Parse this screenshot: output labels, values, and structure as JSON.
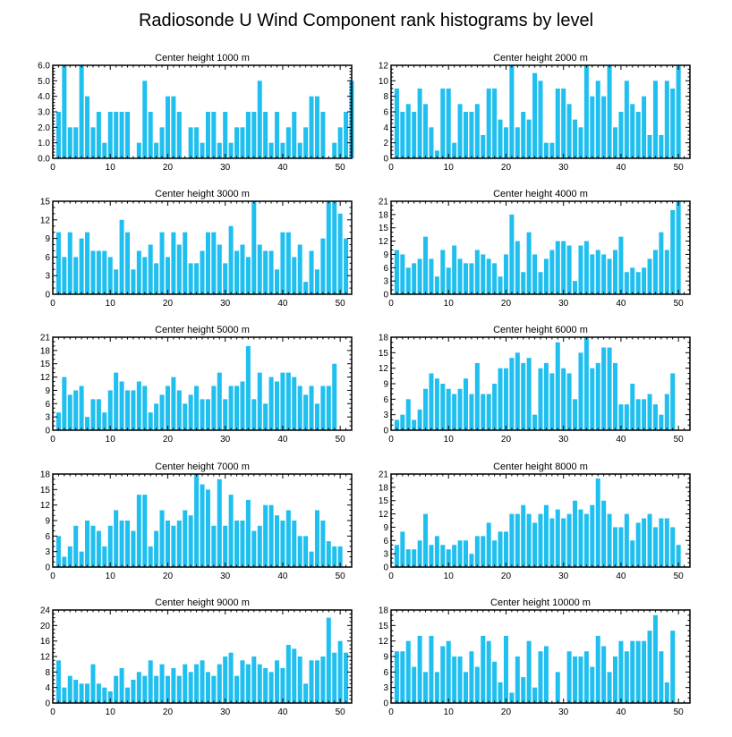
{
  "figure_title": "Radiosonde U Wind Component rank histograms by level",
  "colors": {
    "bar": "#1fbfef",
    "axis": "#000000",
    "text": "#000000"
  },
  "chart_data": [
    {
      "type": "bar",
      "title": "Center height 1000 m",
      "xlim": [
        0,
        52
      ],
      "ylim": [
        0,
        6
      ],
      "xticks": [
        0,
        10,
        20,
        30,
        40,
        50
      ],
      "xtick_labels": [
        "0",
        "10",
        "20",
        "30",
        "40",
        "50"
      ],
      "yticks": [
        0,
        1,
        2,
        3,
        4,
        5,
        6
      ],
      "ytick_labels": [
        "0.0",
        "1.0",
        "2.0",
        "3.0",
        "4.0",
        "5.0",
        "6.0"
      ],
      "x_start": 1,
      "values": [
        3,
        6,
        2,
        2,
        6,
        4,
        2,
        3,
        1,
        3,
        3,
        3,
        3,
        0,
        1,
        5,
        3,
        1,
        2,
        4,
        4,
        3,
        0,
        2,
        2,
        1,
        3,
        3,
        1,
        3,
        1,
        2,
        2,
        3,
        3,
        5,
        3,
        1,
        3,
        1,
        2,
        3,
        1,
        2,
        4,
        4,
        3,
        0,
        1,
        2,
        3,
        5
      ]
    },
    {
      "type": "bar",
      "title": "Center height 2000 m",
      "xlim": [
        0,
        52
      ],
      "ylim": [
        0,
        12
      ],
      "xticks": [
        0,
        10,
        20,
        30,
        40,
        50
      ],
      "xtick_labels": [
        "0",
        "10",
        "20",
        "30",
        "40",
        "50"
      ],
      "yticks": [
        0,
        2,
        4,
        6,
        8,
        10,
        12
      ],
      "ytick_labels": [
        "0",
        "2",
        "4",
        "6",
        "8",
        "10",
        "12"
      ],
      "x_start": 1,
      "values": [
        9,
        6,
        7,
        6,
        9,
        7,
        4,
        1,
        9,
        9,
        2,
        7,
        6,
        6,
        7,
        3,
        9,
        9,
        5,
        4,
        12,
        4,
        6,
        5,
        11,
        10,
        2,
        2,
        9,
        9,
        7,
        5,
        4,
        12,
        8,
        10,
        8,
        12,
        4,
        6,
        10,
        7,
        6,
        8,
        3,
        10,
        3,
        10,
        9,
        12
      ]
    },
    {
      "type": "bar",
      "title": "Center height 3000 m",
      "xlim": [
        0,
        52
      ],
      "ylim": [
        0,
        15
      ],
      "xticks": [
        0,
        10,
        20,
        30,
        40,
        50
      ],
      "xtick_labels": [
        "0",
        "10",
        "20",
        "30",
        "40",
        "50"
      ],
      "yticks": [
        0,
        3,
        6,
        9,
        12,
        15
      ],
      "ytick_labels": [
        "0",
        "3",
        "6",
        "9",
        "12",
        "15"
      ],
      "x_start": 1,
      "values": [
        10,
        6,
        10,
        6,
        9,
        10,
        7,
        7,
        7,
        6,
        4,
        12,
        10,
        4,
        7,
        6,
        8,
        5,
        10,
        6,
        10,
        8,
        10,
        5,
        5,
        7,
        10,
        10,
        8,
        5,
        11,
        7,
        8,
        6,
        15,
        8,
        7,
        7,
        4,
        10,
        10,
        6,
        8,
        2,
        7,
        4,
        9,
        15,
        15,
        13,
        9
      ]
    },
    {
      "type": "bar",
      "title": "Center height 4000 m",
      "xlim": [
        0,
        52
      ],
      "ylim": [
        0,
        21
      ],
      "xticks": [
        0,
        10,
        20,
        30,
        40,
        50
      ],
      "xtick_labels": [
        "0",
        "10",
        "20",
        "30",
        "40",
        "50"
      ],
      "yticks": [
        0,
        3,
        6,
        9,
        12,
        15,
        18,
        21
      ],
      "ytick_labels": [
        "0",
        "3",
        "6",
        "9",
        "12",
        "15",
        "18",
        "21"
      ],
      "x_start": 1,
      "values": [
        10,
        9,
        6,
        7,
        8,
        13,
        8,
        4,
        10,
        6,
        11,
        8,
        7,
        7,
        10,
        9,
        8,
        7,
        4,
        9,
        18,
        12,
        5,
        14,
        9,
        5,
        8,
        10,
        12,
        12,
        11,
        3,
        11,
        12,
        9,
        10,
        9,
        8,
        10,
        13,
        5,
        6,
        5,
        6,
        8,
        10,
        14,
        10,
        19,
        21
      ]
    },
    {
      "type": "bar",
      "title": "Center height 5000 m",
      "xlim": [
        0,
        52
      ],
      "ylim": [
        0,
        21
      ],
      "xticks": [
        0,
        10,
        20,
        30,
        40,
        50
      ],
      "xtick_labels": [
        "0",
        "10",
        "20",
        "30",
        "40",
        "50"
      ],
      "yticks": [
        0,
        3,
        6,
        9,
        12,
        15,
        18,
        21
      ],
      "ytick_labels": [
        "0",
        "3",
        "6",
        "9",
        "12",
        "15",
        "18",
        "21"
      ],
      "x_start": 1,
      "values": [
        4,
        12,
        8,
        9,
        10,
        3,
        7,
        7,
        4,
        9,
        13,
        11,
        9,
        9,
        11,
        10,
        4,
        6,
        8,
        10,
        12,
        9,
        6,
        8,
        10,
        7,
        7,
        10,
        13,
        7,
        10,
        10,
        11,
        19,
        7,
        13,
        6,
        12,
        11,
        13,
        13,
        12,
        10,
        8,
        10,
        6,
        10,
        10,
        15
      ]
    },
    {
      "type": "bar",
      "title": "Center height 6000 m",
      "xlim": [
        0,
        52
      ],
      "ylim": [
        0,
        18
      ],
      "xticks": [
        0,
        10,
        20,
        30,
        40,
        50
      ],
      "xtick_labels": [
        "0",
        "10",
        "20",
        "30",
        "40",
        "50"
      ],
      "yticks": [
        0,
        3,
        6,
        9,
        12,
        15,
        18
      ],
      "ytick_labels": [
        "0",
        "3",
        "6",
        "9",
        "12",
        "15",
        "18"
      ],
      "x_start": 1,
      "values": [
        2,
        3,
        6,
        2,
        4,
        8,
        11,
        10,
        9,
        8,
        7,
        8,
        10,
        7,
        13,
        7,
        7,
        9,
        12,
        12,
        14,
        15,
        13,
        14,
        3,
        12,
        13,
        11,
        17,
        12,
        11,
        6,
        15,
        18,
        12,
        13,
        16,
        16,
        13,
        5,
        5,
        9,
        6,
        6,
        7,
        5,
        3,
        7,
        11
      ]
    },
    {
      "type": "bar",
      "title": "Center height 7000 m",
      "xlim": [
        0,
        52
      ],
      "ylim": [
        0,
        18
      ],
      "xticks": [
        0,
        10,
        20,
        30,
        40,
        50
      ],
      "xtick_labels": [
        "0",
        "10",
        "20",
        "30",
        "40",
        "50"
      ],
      "yticks": [
        0,
        3,
        6,
        9,
        12,
        15,
        18
      ],
      "ytick_labels": [
        "0",
        "3",
        "6",
        "9",
        "12",
        "15",
        "18"
      ],
      "x_start": 1,
      "values": [
        6,
        2,
        4,
        8,
        3,
        9,
        8,
        7,
        4,
        8,
        11,
        9,
        9,
        7,
        14,
        14,
        4,
        7,
        11,
        9,
        8,
        9,
        11,
        10,
        18,
        16,
        15,
        8,
        17,
        8,
        14,
        9,
        9,
        13,
        7,
        8,
        12,
        12,
        10,
        9,
        11,
        9,
        6,
        6,
        3,
        11,
        9,
        5,
        4,
        4
      ]
    },
    {
      "type": "bar",
      "title": "Center height 8000 m",
      "xlim": [
        0,
        52
      ],
      "ylim": [
        0,
        21
      ],
      "xticks": [
        0,
        10,
        20,
        30,
        40,
        50
      ],
      "xtick_labels": [
        "0",
        "10",
        "20",
        "30",
        "40",
        "50"
      ],
      "yticks": [
        0,
        3,
        6,
        9,
        12,
        15,
        18,
        21
      ],
      "ytick_labels": [
        "0",
        "3",
        "6",
        "9",
        "12",
        "15",
        "18",
        "21"
      ],
      "x_start": 1,
      "values": [
        5,
        8,
        4,
        4,
        6,
        12,
        5,
        7,
        5,
        4,
        5,
        6,
        6,
        3,
        7,
        7,
        10,
        6,
        8,
        8,
        12,
        12,
        14,
        12,
        10,
        12,
        14,
        11,
        13,
        11,
        12,
        15,
        13,
        12,
        14,
        20,
        15,
        12,
        9,
        9,
        12,
        6,
        10,
        11,
        12,
        9,
        11,
        11,
        9,
        5
      ]
    },
    {
      "type": "bar",
      "title": "Center height 9000 m",
      "xlim": [
        0,
        52
      ],
      "ylim": [
        0,
        24
      ],
      "xticks": [
        0,
        10,
        20,
        30,
        40,
        50
      ],
      "xtick_labels": [
        "0",
        "10",
        "20",
        "30",
        "40",
        "50"
      ],
      "yticks": [
        0,
        4,
        8,
        12,
        16,
        20,
        24
      ],
      "ytick_labels": [
        "0",
        "4",
        "8",
        "12",
        "16",
        "20",
        "24"
      ],
      "x_start": 1,
      "values": [
        11,
        4,
        7,
        6,
        5,
        5,
        10,
        5,
        4,
        3,
        7,
        9,
        4,
        6,
        8,
        7,
        11,
        7,
        10,
        7,
        9,
        7,
        10,
        8,
        10,
        11,
        8,
        7,
        10,
        12,
        13,
        7,
        11,
        10,
        12,
        10,
        9,
        8,
        11,
        9,
        15,
        14,
        12,
        5,
        11,
        11,
        12,
        22,
        13,
        16,
        13
      ]
    },
    {
      "type": "bar",
      "title": "Center height 10000 m",
      "xlim": [
        0,
        52
      ],
      "ylim": [
        0,
        18
      ],
      "xticks": [
        0,
        10,
        20,
        30,
        40,
        50
      ],
      "xtick_labels": [
        "0",
        "10",
        "20",
        "30",
        "40",
        "50"
      ],
      "yticks": [
        0,
        3,
        6,
        9,
        12,
        15,
        18
      ],
      "ytick_labels": [
        "0",
        "3",
        "6",
        "9",
        "12",
        "15",
        "18"
      ],
      "x_start": 1,
      "values": [
        10,
        10,
        12,
        7,
        13,
        6,
        13,
        6,
        11,
        12,
        9,
        9,
        6,
        10,
        7,
        13,
        12,
        8,
        4,
        13,
        2,
        9,
        5,
        12,
        3,
        10,
        11,
        0,
        6,
        0,
        10,
        9,
        9,
        10,
        7,
        13,
        11,
        6,
        9,
        12,
        10,
        12,
        12,
        12,
        14,
        17,
        10,
        4,
        14
      ]
    }
  ]
}
